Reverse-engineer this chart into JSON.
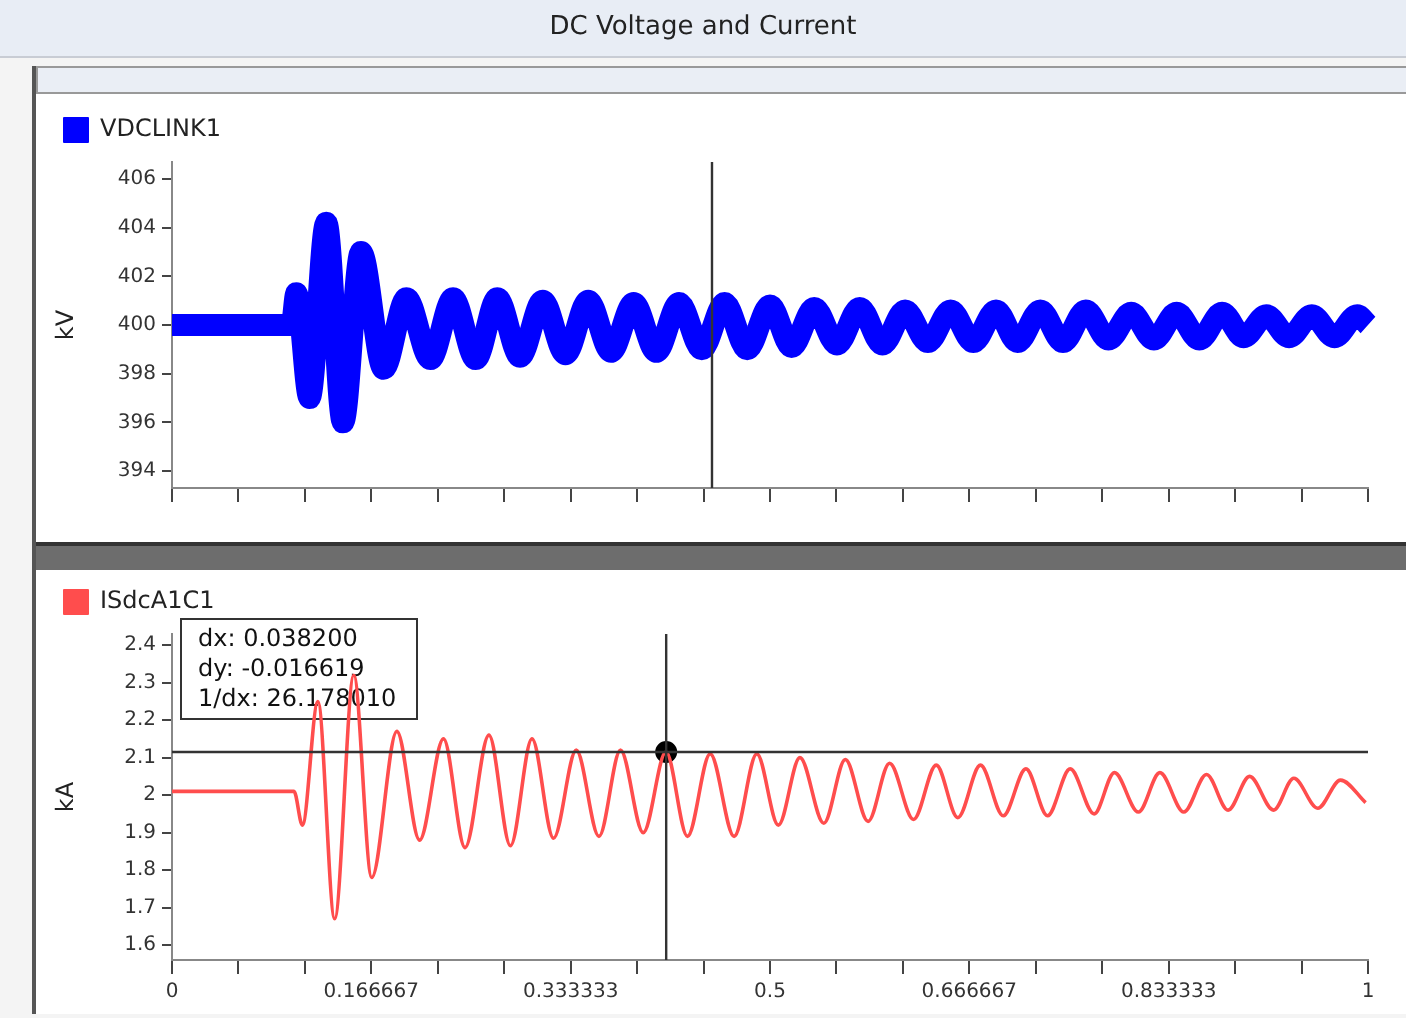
{
  "chart_data": [
    {
      "type": "line",
      "title": "DC Voltage and Current",
      "ylabel": "kV",
      "legend": "top left",
      "tick_labels": "y",
      "xlim": [
        0,
        1
      ],
      "xticks": [
        0,
        {
          "value": 0.055556,
          "label": null
        },
        {
          "value": 0.111111,
          "label": null
        },
        0.166667,
        {
          "value": 0.222222,
          "label": null
        },
        {
          "value": 0.277778,
          "label": null
        },
        0.333333,
        {
          "value": 0.388889,
          "label": null
        },
        {
          "value": 0.444444,
          "label": null
        },
        0.5,
        {
          "value": 0.555556,
          "label": null
        },
        {
          "value": 0.611111,
          "label": null
        },
        0.666667,
        {
          "value": 0.722222,
          "label": null
        },
        {
          "value": 0.777778,
          "label": null
        },
        0.833333,
        {
          "value": 0.888889,
          "label": null
        },
        {
          "value": 0.944444,
          "label": null
        },
        1
      ],
      "ylim": [
        393.3,
        406.7
      ],
      "yticks": [
        394,
        396,
        398,
        400,
        402,
        404,
        406
      ],
      "ref_lines": [
        {
          "axis": "x",
          "value": 0.4515,
          "color": "#333333"
        }
      ],
      "series": [
        {
          "name": "VDCLINK1",
          "color": "#0000ff",
          "x": [
            0,
            0.1,
            0.104,
            0.115,
            0.129,
            0.143,
            0.158,
            0.177,
            0.196,
            0.216,
            0.235,
            0.254,
            0.272,
            0.291,
            0.31,
            0.329,
            0.348,
            0.367,
            0.386,
            0.405,
            0.424,
            0.443,
            0.462,
            0.481,
            0.5,
            0.518,
            0.537,
            0.556,
            0.575,
            0.594,
            0.613,
            0.632,
            0.651,
            0.67,
            0.689,
            0.707,
            0.726,
            0.745,
            0.764,
            0.783,
            0.802,
            0.821,
            0.84,
            0.859,
            0.878,
            0.896,
            0.915,
            0.934,
            0.953,
            0.972,
            0.991,
            1.0
          ],
          "values": [
            400,
            400,
            401.3,
            397,
            404.2,
            396.0,
            403.0,
            398.2,
            401.1,
            398.6,
            401.1,
            398.6,
            401.1,
            398.7,
            401.0,
            398.8,
            401.0,
            398.9,
            400.9,
            398.9,
            400.9,
            399.0,
            400.9,
            399.0,
            400.8,
            399.1,
            400.7,
            399.2,
            400.7,
            399.2,
            400.6,
            399.3,
            400.6,
            399.3,
            400.6,
            399.3,
            400.6,
            399.3,
            400.6,
            399.4,
            400.5,
            399.4,
            400.5,
            399.4,
            400.5,
            399.5,
            400.4,
            399.5,
            400.4,
            399.5,
            400.4,
            400.0
          ]
        }
      ]
    },
    {
      "type": "line",
      "ylabel": "kA",
      "legend": "top left",
      "xlim": [
        0,
        1
      ],
      "xticks": [
        0,
        {
          "value": 0.055556,
          "label": null
        },
        {
          "value": 0.111111,
          "label": null
        },
        0.166667,
        {
          "value": 0.222222,
          "label": null
        },
        {
          "value": 0.277778,
          "label": null
        },
        0.333333,
        {
          "value": 0.388889,
          "label": null
        },
        {
          "value": 0.444444,
          "label": null
        },
        0.5,
        {
          "value": 0.555556,
          "label": null
        },
        {
          "value": 0.611111,
          "label": null
        },
        0.666667,
        {
          "value": 0.722222,
          "label": null
        },
        {
          "value": 0.777778,
          "label": null
        },
        0.833333,
        {
          "value": 0.888889,
          "label": null
        },
        {
          "value": 0.944444,
          "label": null
        },
        1
      ],
      "ylim": [
        1.56,
        2.43
      ],
      "yticks": [
        1.6,
        1.7,
        1.8,
        1.9,
        2,
        2.1,
        2.2,
        2.3,
        2.4
      ],
      "ref_lines": [
        {
          "axis": "x",
          "value": 0.4132,
          "color": "#333333"
        },
        {
          "axis": "y",
          "value": 2.115,
          "color": "#333333"
        }
      ],
      "annotations": [
        "dx: 0.038200",
        "dy: -0.016619",
        "1/dx: 26.178010"
      ],
      "series": [
        {
          "name": "ISdcA1C1",
          "color": "#ff4d4d",
          "x": [
            0,
            0.102,
            0.109,
            0.122,
            0.136,
            0.152,
            0.167,
            0.188,
            0.207,
            0.227,
            0.245,
            0.265,
            0.283,
            0.301,
            0.319,
            0.338,
            0.357,
            0.375,
            0.394,
            0.413,
            0.431,
            0.45,
            0.47,
            0.489,
            0.507,
            0.525,
            0.545,
            0.563,
            0.582,
            0.6,
            0.62,
            0.639,
            0.657,
            0.676,
            0.695,
            0.714,
            0.732,
            0.751,
            0.771,
            0.788,
            0.808,
            0.826,
            0.846,
            0.865,
            0.883,
            0.901,
            0.921,
            0.938,
            0.958,
            0.977,
            0.998
          ],
          "values": [
            2.01,
            2.01,
            1.92,
            2.25,
            1.67,
            2.32,
            1.78,
            2.17,
            1.88,
            2.15,
            1.86,
            2.16,
            1.865,
            2.15,
            1.885,
            2.12,
            1.89,
            2.12,
            1.9,
            2.115,
            1.89,
            2.11,
            1.89,
            2.11,
            1.92,
            2.1,
            1.925,
            2.095,
            1.93,
            2.085,
            1.935,
            2.08,
            1.94,
            2.08,
            1.945,
            2.07,
            1.945,
            2.07,
            1.95,
            2.06,
            1.955,
            2.06,
            1.955,
            2.055,
            1.96,
            2.05,
            1.96,
            2.045,
            1.965,
            2.04,
            1.98
          ]
        },
        {
          "type": "scatter",
          "color": "#000000",
          "marker": "circle",
          "x": [
            0.4132
          ],
          "values": [
            2.115
          ]
        }
      ]
    }
  ]
}
